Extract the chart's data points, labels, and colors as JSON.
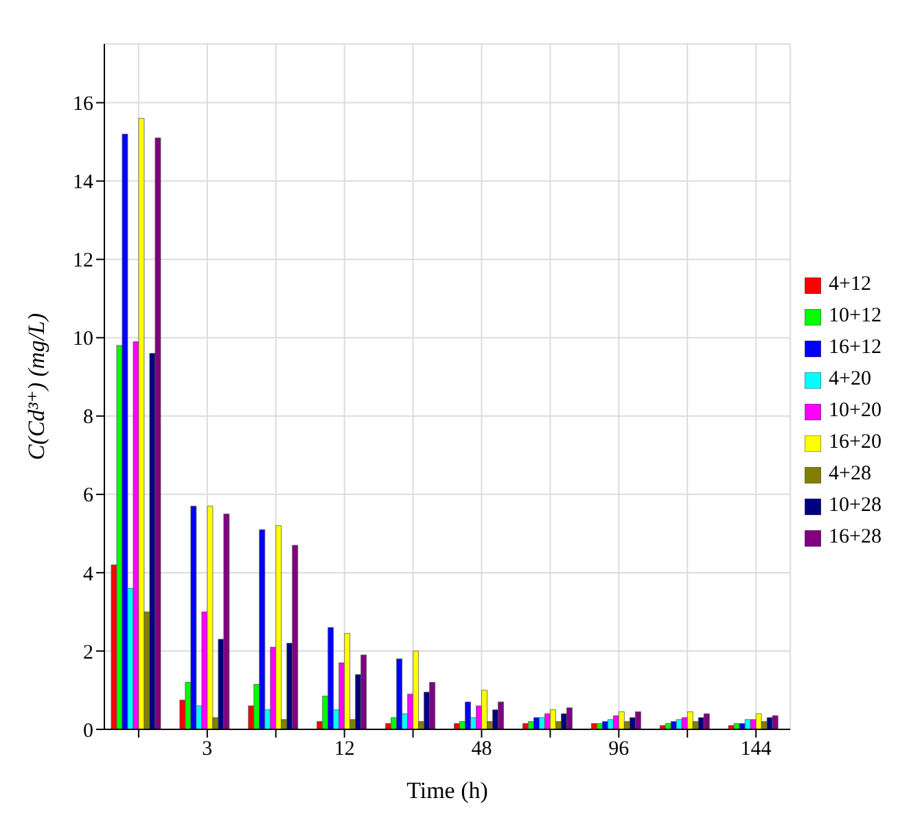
{
  "chart_data": {
    "type": "bar",
    "xlabel": "Time (h)",
    "ylabel": "C(Cd³⁺) (mg/L)",
    "categories": [
      null,
      "3",
      null,
      "12",
      null,
      "48",
      null,
      "96",
      null,
      "144"
    ],
    "series": [
      {
        "name": "4+12",
        "color": "#ff0000",
        "values": [
          4.2,
          0.75,
          0.6,
          0.2,
          0.15,
          0.15,
          0.15,
          0.15,
          0.1,
          0.1
        ]
      },
      {
        "name": "10+12",
        "color": "#00ff00",
        "values": [
          9.8,
          1.2,
          1.15,
          0.85,
          0.3,
          0.2,
          0.2,
          0.15,
          0.15,
          0.15
        ]
      },
      {
        "name": "16+12",
        "color": "#0000ff",
        "values": [
          15.2,
          5.7,
          5.1,
          2.6,
          1.8,
          0.7,
          0.3,
          0.2,
          0.2,
          0.15
        ]
      },
      {
        "name": "4+20",
        "color": "#00ffff",
        "values": [
          3.6,
          0.6,
          0.5,
          0.5,
          0.4,
          0.3,
          0.3,
          0.25,
          0.25,
          0.25
        ]
      },
      {
        "name": "10+20",
        "color": "#ff00ff",
        "values": [
          9.9,
          3.0,
          2.1,
          1.7,
          0.9,
          0.6,
          0.4,
          0.35,
          0.3,
          0.25
        ]
      },
      {
        "name": "16+20",
        "color": "#ffff00",
        "values": [
          15.6,
          5.7,
          5.2,
          2.45,
          2.0,
          1.0,
          0.5,
          0.45,
          0.45,
          0.4
        ]
      },
      {
        "name": "4+28",
        "color": "#808000",
        "values": [
          3.0,
          0.3,
          0.25,
          0.25,
          0.2,
          0.2,
          0.2,
          0.2,
          0.2,
          0.2
        ]
      },
      {
        "name": "10+28",
        "color": "#000080",
        "values": [
          9.6,
          2.3,
          2.2,
          1.4,
          0.95,
          0.5,
          0.4,
          0.3,
          0.3,
          0.3
        ]
      },
      {
        "name": "16+28",
        "color": "#800080",
        "values": [
          15.1,
          5.5,
          4.7,
          1.9,
          1.2,
          0.7,
          0.55,
          0.45,
          0.4,
          0.35
        ]
      }
    ],
    "ylim": [
      0,
      17.5
    ],
    "yticks": [
      0,
      2,
      4,
      6,
      8,
      10,
      12,
      14,
      16
    ],
    "grid": true,
    "legend": "right"
  }
}
